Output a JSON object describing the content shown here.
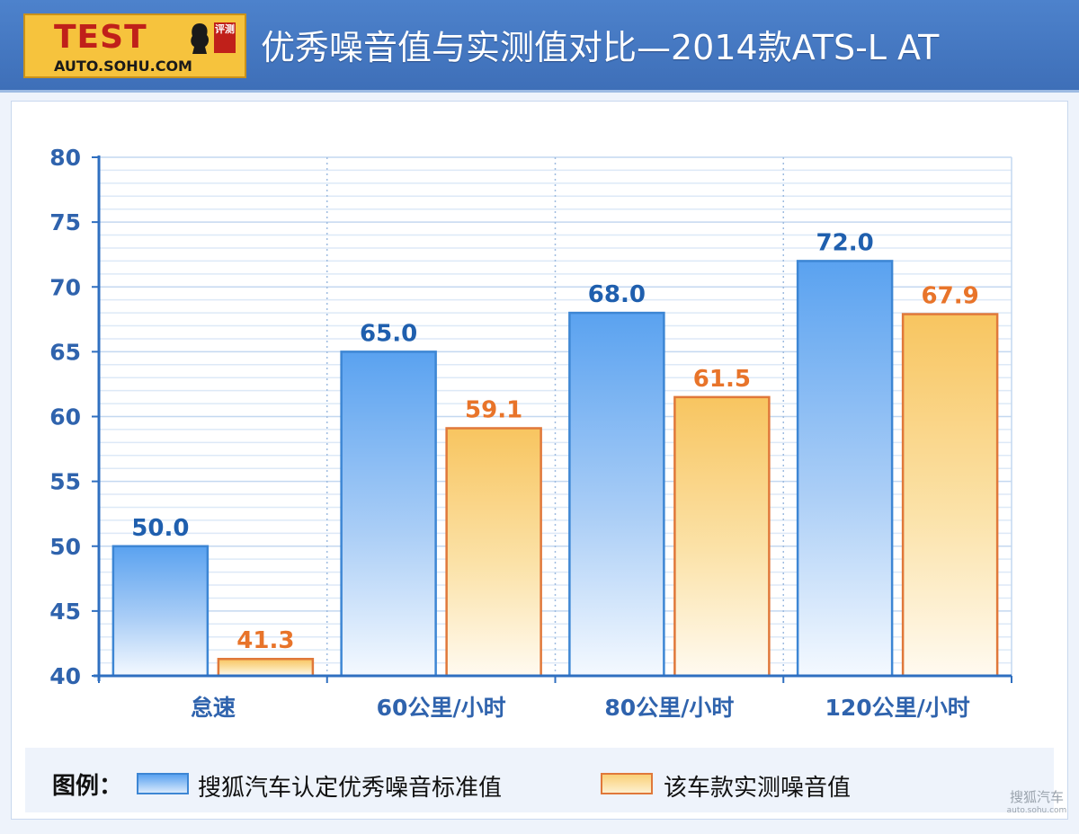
{
  "header": {
    "logo_main": "TEST",
    "logo_badge": "评测",
    "logo_url": "AUTO.SOHU.COM",
    "title": "优秀噪音值与实测值对比—2014款ATS-L AT"
  },
  "legend": {
    "label": "图例：",
    "items": [
      {
        "text": "搜狐汽车认定优秀噪音标准值",
        "color": "#5aa2f0"
      },
      {
        "text": "该车款实测噪音值",
        "color": "#f8c560"
      }
    ]
  },
  "watermark": {
    "line1": "搜狐汽车",
    "line2": "auto.sohu.com"
  },
  "chart_data": {
    "type": "bar",
    "title": "优秀噪音值与实测值对比—2014款ATS-L AT",
    "categories": [
      "怠速",
      "60公里/小时",
      "80公里/小时",
      "120公里/小时"
    ],
    "series": [
      {
        "name": "搜狐汽车认定优秀噪音标准值",
        "values": [
          50.0,
          65.0,
          68.0,
          72.0
        ],
        "labels": [
          "50.0",
          "65.0",
          "68.0",
          "72.0"
        ],
        "color": "#3d86d4",
        "label_color": "#1f5fae"
      },
      {
        "name": "该车款实测噪音值",
        "values": [
          41.3,
          59.1,
          61.5,
          67.9
        ],
        "labels": [
          "41.3",
          "59.1",
          "61.5",
          "67.9"
        ],
        "color": "#e0783a",
        "label_color": "#e8742a"
      }
    ],
    "ylim": [
      40,
      80
    ],
    "yticks": [
      "40",
      "45",
      "50",
      "55",
      "60",
      "65",
      "70",
      "75",
      "80"
    ],
    "grid": true,
    "legend_position": "bottom"
  }
}
